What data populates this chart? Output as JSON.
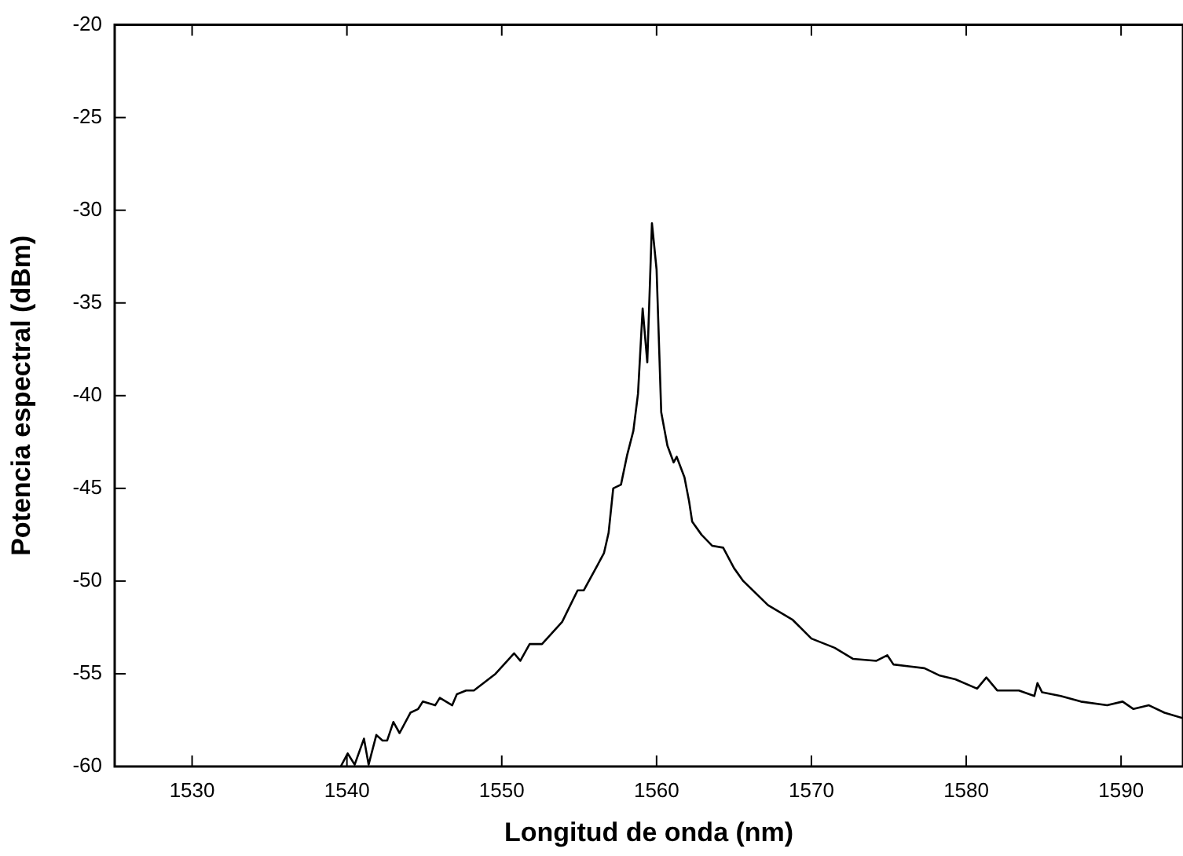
{
  "chart_data": {
    "type": "line",
    "xlabel": "Longitud de onda (nm)",
    "ylabel": "Potencia espectral (dBm)",
    "xlim": [
      1525,
      1594
    ],
    "xticks": [
      1530,
      1540,
      1550,
      1560,
      1570,
      1580,
      1590
    ],
    "ylim": [
      -60,
      -20
    ],
    "yticks": [
      -60,
      -55,
      -50,
      -45,
      -40,
      -35,
      -30,
      -25,
      -20
    ],
    "marker": "none",
    "line_style": "solid",
    "x": [
      1539.6,
      1540.05,
      1540.5,
      1541.1,
      1541.4,
      1541.9,
      1542.3,
      1542.6,
      1543.0,
      1543.4,
      1544.1,
      1544.6,
      1544.9,
      1545.7,
      1546.0,
      1546.8,
      1547.1,
      1547.7,
      1548.2,
      1549.6,
      1550.8,
      1551.2,
      1551.8,
      1552.6,
      1553.9,
      1554.9,
      1555.3,
      1556.6,
      1556.9,
      1557.2,
      1557.7,
      1558.1,
      1558.5,
      1558.8,
      1559.1,
      1559.4,
      1559.7,
      1560.0,
      1560.3,
      1560.7,
      1561.1,
      1561.3,
      1561.8,
      1562.1,
      1562.3,
      1562.9,
      1563.6,
      1564.3,
      1565.0,
      1565.6,
      1567.2,
      1568.8,
      1570.0,
      1571.5,
      1572.7,
      1574.2,
      1574.9,
      1575.3,
      1576.3,
      1577.3,
      1578.3,
      1579.3,
      1580.7,
      1581.3,
      1582.0,
      1583.4,
      1584.4,
      1584.6,
      1584.9,
      1586.1,
      1587.4,
      1589.1,
      1590.1,
      1590.8,
      1591.8,
      1592.8,
      1594.0
    ],
    "series": [
      {
        "color": "#000000",
        "values": [
          -60,
          -59.3,
          -59.9,
          -58.5,
          -59.9,
          -58.3,
          -58.6,
          -58.6,
          -57.6,
          -58.2,
          -57.1,
          -56.9,
          -56.5,
          -56.7,
          -56.3,
          -56.7,
          -56.1,
          -55.9,
          -55.9,
          -55.0,
          -53.9,
          -54.3,
          -53.4,
          -53.4,
          -52.2,
          -50.5,
          -50.5,
          -48.5,
          -47.4,
          -45.0,
          -44.8,
          -43.2,
          -41.9,
          -39.9,
          -35.3,
          -38.2,
          -30.7,
          -33.2,
          -40.9,
          -42.7,
          -43.6,
          -43.3,
          -44.4,
          -45.7,
          -46.8,
          -47.5,
          -48.1,
          -48.2,
          -49.3,
          -50.0,
          -51.3,
          -52.1,
          -53.1,
          -53.6,
          -54.2,
          -54.3,
          -54.0,
          -54.5,
          -54.6,
          -54.7,
          -55.1,
          -55.3,
          -55.8,
          -55.2,
          -55.9,
          -55.9,
          -56.2,
          -55.5,
          -56.0,
          -56.2,
          -56.5,
          -56.7,
          -56.5,
          -56.9,
          -56.7,
          -57.1,
          -57.4
        ]
      }
    ]
  }
}
